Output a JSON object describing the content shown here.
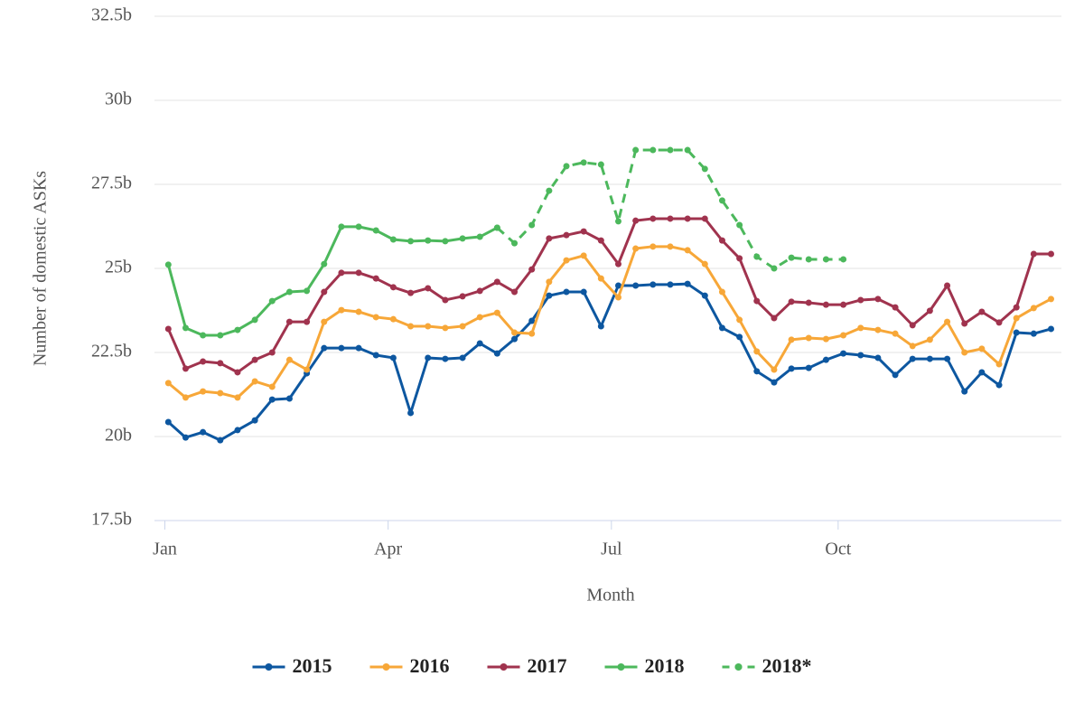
{
  "chart_data": {
    "type": "line",
    "x_label": "Month",
    "y_label": "Number of domestic ASKs",
    "x": [
      1,
      2,
      3,
      4,
      5,
      6,
      7,
      8,
      9,
      10,
      11,
      12,
      13,
      14,
      15,
      16,
      17,
      18,
      19,
      20,
      21,
      22,
      23,
      24,
      25,
      26,
      27,
      28,
      29,
      30,
      31,
      32,
      33,
      34,
      35,
      36,
      37,
      38,
      39,
      40,
      41,
      42,
      43,
      44,
      45,
      46,
      47,
      48,
      49,
      50,
      51,
      52
    ],
    "xlim": [
      0.2,
      52.6
    ],
    "xticks": [
      {
        "value": 0.8,
        "label": "Jan"
      },
      {
        "value": 13.7,
        "label": "Apr"
      },
      {
        "value": 26.6,
        "label": "Jul"
      },
      {
        "value": 39.7,
        "label": "Oct"
      }
    ],
    "ylim": [
      17.5,
      32.5
    ],
    "yticks": [
      {
        "value": 17.5,
        "label": "17.5b"
      },
      {
        "value": 20,
        "label": "20b"
      },
      {
        "value": 22.5,
        "label": "22.5b"
      },
      {
        "value": 25,
        "label": "25b"
      },
      {
        "value": 27.5,
        "label": "27.5b"
      },
      {
        "value": 30,
        "label": "30b"
      },
      {
        "value": 32.5,
        "label": "32.5b"
      }
    ],
    "grid": true,
    "legend": "bottom",
    "series": [
      {
        "name": "2015",
        "color": "#0d57a0",
        "dash": false,
        "values": [
          20.43,
          19.97,
          20.13,
          19.89,
          20.19,
          20.48,
          21.1,
          21.13,
          21.88,
          22.63,
          22.63,
          22.63,
          22.42,
          22.34,
          20.7,
          22.34,
          22.31,
          22.34,
          22.77,
          22.47,
          22.9,
          23.44,
          24.19,
          24.3,
          24.3,
          23.28,
          24.49,
          24.49,
          24.52,
          24.52,
          24.54,
          24.19,
          23.23,
          22.96,
          21.94,
          21.61,
          22.02,
          22.04,
          22.28,
          22.47,
          22.42,
          22.34,
          21.83,
          22.31,
          22.31,
          22.31,
          21.34,
          21.91,
          21.53,
          23.09,
          23.06,
          23.2
        ]
      },
      {
        "name": "2016",
        "color": "#f7a738",
        "dash": false,
        "values": [
          21.59,
          21.16,
          21.34,
          21.29,
          21.16,
          21.64,
          21.48,
          22.28,
          21.99,
          23.41,
          23.76,
          23.71,
          23.55,
          23.49,
          23.28,
          23.28,
          23.23,
          23.28,
          23.55,
          23.68,
          23.09,
          23.06,
          24.6,
          25.24,
          25.38,
          24.7,
          24.14,
          25.59,
          25.65,
          25.65,
          25.54,
          25.13,
          24.3,
          23.47,
          22.53,
          21.99,
          22.88,
          22.93,
          22.9,
          23.01,
          23.23,
          23.17,
          23.06,
          22.69,
          22.88,
          23.41,
          22.5,
          22.61,
          22.15,
          23.52,
          23.82,
          24.09
        ]
      },
      {
        "name": "2017",
        "color": "#a0334e",
        "dash": false,
        "values": [
          23.2,
          22.02,
          22.23,
          22.18,
          21.91,
          22.28,
          22.5,
          23.41,
          23.41,
          24.3,
          24.87,
          24.87,
          24.7,
          24.44,
          24.27,
          24.41,
          24.06,
          24.17,
          24.33,
          24.6,
          24.3,
          24.97,
          25.89,
          25.99,
          26.1,
          25.83,
          25.13,
          26.42,
          26.48,
          26.48,
          26.48,
          26.48,
          25.83,
          25.3,
          24.03,
          23.52,
          24.01,
          23.98,
          23.92,
          23.92,
          24.06,
          24.09,
          23.84,
          23.31,
          23.74,
          24.49,
          23.36,
          23.71,
          23.39,
          23.84,
          25.43,
          25.43
        ]
      },
      {
        "name": "2018",
        "color": "#4cb85c",
        "dash": false,
        "values": [
          25.11,
          23.23,
          23.01,
          23.01,
          23.17,
          23.47,
          24.03,
          24.3,
          24.33,
          25.13,
          26.24,
          26.24,
          26.13,
          25.86,
          25.81,
          25.83,
          25.81,
          25.89,
          25.94,
          26.21,
          null,
          null,
          null,
          null,
          null,
          null,
          null,
          null,
          null,
          null,
          null,
          null,
          null,
          null,
          null,
          null,
          null,
          null,
          null,
          null,
          null,
          null,
          null,
          null,
          null,
          null,
          null,
          null,
          null,
          null,
          null,
          null
        ]
      },
      {
        "name": "2018*",
        "color": "#4cb85c",
        "dash": true,
        "values": [
          null,
          null,
          null,
          null,
          null,
          null,
          null,
          null,
          null,
          null,
          null,
          null,
          null,
          null,
          null,
          null,
          null,
          null,
          null,
          26.21,
          25.75,
          26.29,
          27.31,
          28.04,
          28.15,
          28.09,
          26.4,
          28.52,
          28.52,
          28.52,
          28.52,
          27.96,
          27.02,
          26.29,
          25.35,
          25.0,
          25.32,
          25.27,
          25.27,
          25.27,
          null,
          null,
          null,
          null,
          null,
          null,
          null,
          null,
          null,
          null,
          null,
          null
        ]
      }
    ]
  }
}
